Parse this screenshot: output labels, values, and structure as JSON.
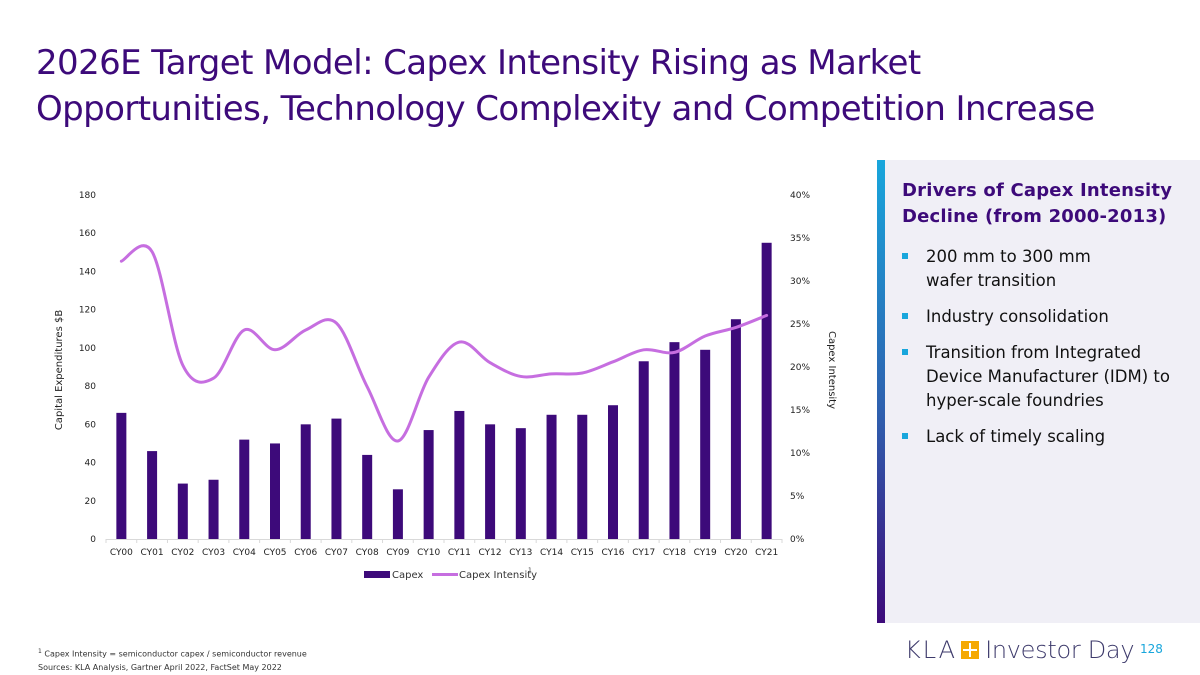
{
  "title": "2026E Target Model: Capex Intensity Rising as Market Opportunities, Technology Complexity and Competition Increase",
  "colors": {
    "title": "#3d0a7a",
    "bar": "#3d0a7a",
    "line": "#c66ee0",
    "accent": "#18a6dc",
    "panel_bg": "#f0eff6"
  },
  "chart_data": {
    "type": "bar",
    "combo": "bar+line (dual axis)",
    "categories": [
      "CY00",
      "CY01",
      "CY02",
      "CY03",
      "CY04",
      "CY05",
      "CY06",
      "CY07",
      "CY08",
      "CY09",
      "CY10",
      "CY11",
      "CY12",
      "CY13",
      "CY14",
      "CY15",
      "CY16",
      "CY17",
      "CY18",
      "CY19",
      "CY20",
      "CY21"
    ],
    "series": [
      {
        "name": "Capex",
        "type": "bar",
        "axis": "left",
        "values": [
          66,
          46,
          29,
          31,
          52,
          50,
          60,
          63,
          44,
          26,
          57,
          67,
          60,
          58,
          65,
          65,
          70,
          93,
          103,
          99,
          115,
          155
        ]
      },
      {
        "name": "Capex Intensity",
        "type": "line",
        "axis": "right",
        "unit": "%",
        "values": [
          32.3,
          33.4,
          20.2,
          18.7,
          24.3,
          22.0,
          24.3,
          25.1,
          17.7,
          11.4,
          18.8,
          22.9,
          20.5,
          18.9,
          19.2,
          19.3,
          20.6,
          22.0,
          21.7,
          23.6,
          24.6,
          26.0
        ]
      }
    ],
    "ylabel": "Capital Expenditures $B",
    "y2label": "Capex Intensity",
    "ylim": [
      0,
      180
    ],
    "y2lim": [
      0,
      40
    ],
    "yticks": [
      "0",
      "20",
      "40",
      "60",
      "80",
      "100",
      "120",
      "140",
      "160",
      "180"
    ],
    "y2ticks": [
      "0%",
      "5%",
      "10%",
      "15%",
      "20%",
      "25%",
      "30%",
      "35%",
      "40%"
    ],
    "grid": false,
    "legend": {
      "placement": "bottom",
      "entries": [
        {
          "label": "Capex",
          "marker": "bar"
        },
        {
          "label": "Capex Intensity",
          "marker": "line",
          "superscript": "1"
        }
      ]
    }
  },
  "panel": {
    "heading": "Drivers of Capex Intensity Decline (from 2000-2013)",
    "bullets": [
      "200 mm to 300 mm wafer transition",
      "Industry consolidation",
      "Transition from Integrated Device Manufacturer (IDM) to hyper-scale foundries",
      "Lack of timely scaling"
    ]
  },
  "footnote": {
    "marker": "1",
    "definition": "Capex Intensity = semiconductor  capex / semiconductor  revenue",
    "sources": "Sources: KLA Analysis, Gartner April 2022, FactSet May 2022"
  },
  "brand": {
    "logo_text": "KLA",
    "event": "Investor Day",
    "page_number": "128"
  }
}
